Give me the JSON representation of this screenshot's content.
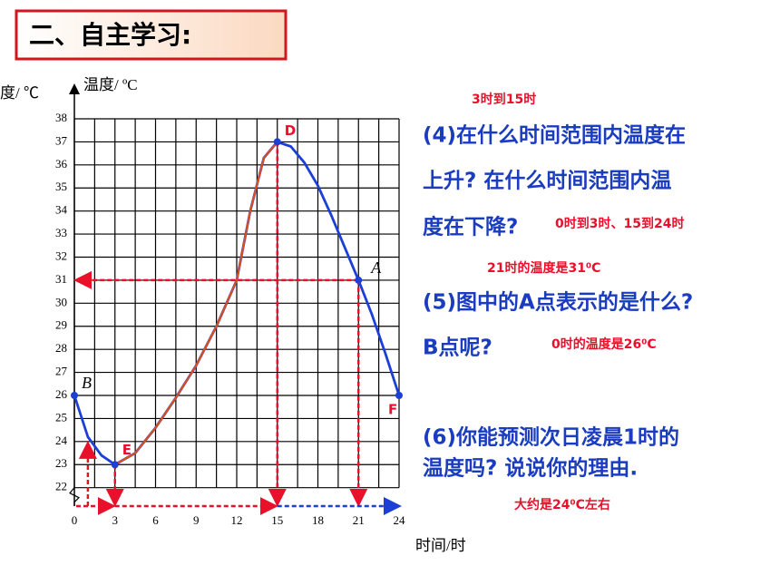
{
  "header": {
    "title": "二、自主学习:"
  },
  "chart_data": {
    "type": "line",
    "y_label": "温度/ ºC",
    "x_label": "时间/时",
    "cut_label": "度/ ℃",
    "xlim": [
      0,
      24
    ],
    "xticks": [
      0,
      3,
      6,
      9,
      12,
      15,
      18,
      21,
      24
    ],
    "ylim": [
      21.2,
      38
    ],
    "yticks": [
      22,
      23,
      24,
      25,
      26,
      27,
      28,
      29,
      30,
      31,
      32,
      33,
      34,
      35,
      36,
      37,
      38
    ],
    "grid": true,
    "series": [
      {
        "color": "#1c3fd6",
        "x": [
          0,
          1,
          2,
          3,
          4.5,
          6,
          7.5,
          9,
          10.5,
          12,
          13,
          14,
          15,
          16,
          17,
          18,
          19,
          20,
          21,
          22,
          23,
          24
        ],
        "values": [
          26,
          24.2,
          23.4,
          23,
          23.5,
          24.6,
          25.9,
          27.3,
          29,
          31,
          34,
          36.3,
          37,
          36.8,
          36.1,
          35.1,
          33.8,
          32.4,
          31,
          29.5,
          27.8,
          26
        ]
      },
      {
        "color": "#d9501e",
        "x": [
          3,
          4.5,
          6,
          7.5,
          9,
          10.5,
          12,
          13,
          14,
          15
        ],
        "values": [
          23,
          23.5,
          24.6,
          25.9,
          27.3,
          29,
          31,
          34,
          36.3,
          37
        ]
      }
    ],
    "points": [
      {
        "label": "B",
        "x": 0,
        "y": 26,
        "color": "#000000"
      },
      {
        "label": "E",
        "x": 3,
        "y": 23,
        "color": "#e8102a"
      },
      {
        "label": "D",
        "x": 15,
        "y": 37,
        "color": "#e8102a"
      },
      {
        "label": "A",
        "x": 21,
        "y": 31,
        "color": "#000000"
      },
      {
        "label": "F",
        "x": 24,
        "y": 26,
        "color": "#e8102a"
      }
    ],
    "guides": [
      {
        "x": 1,
        "y": 24
      }
    ]
  },
  "questions": {
    "q4_answer_rise": "3时到15时",
    "q4_lines": [
      "(4)在什么时间范围内温度在",
      "上升? 在什么时间范围内温",
      "度在下降?"
    ],
    "q4_answer_fall": "0时到3时、15到24时",
    "q5_answer_a": "21时的温度是31⁰C",
    "q5_lines": [
      "(5)图中的A点表示的是什么?",
      "B点呢?"
    ],
    "q5_answer_b": "0时的温度是26⁰C",
    "q6_lines": [
      "(6)你能预测次日凌晨1时的",
      "温度吗? 说说你的理由."
    ],
    "q6_answer": "大约是24⁰C左右"
  }
}
